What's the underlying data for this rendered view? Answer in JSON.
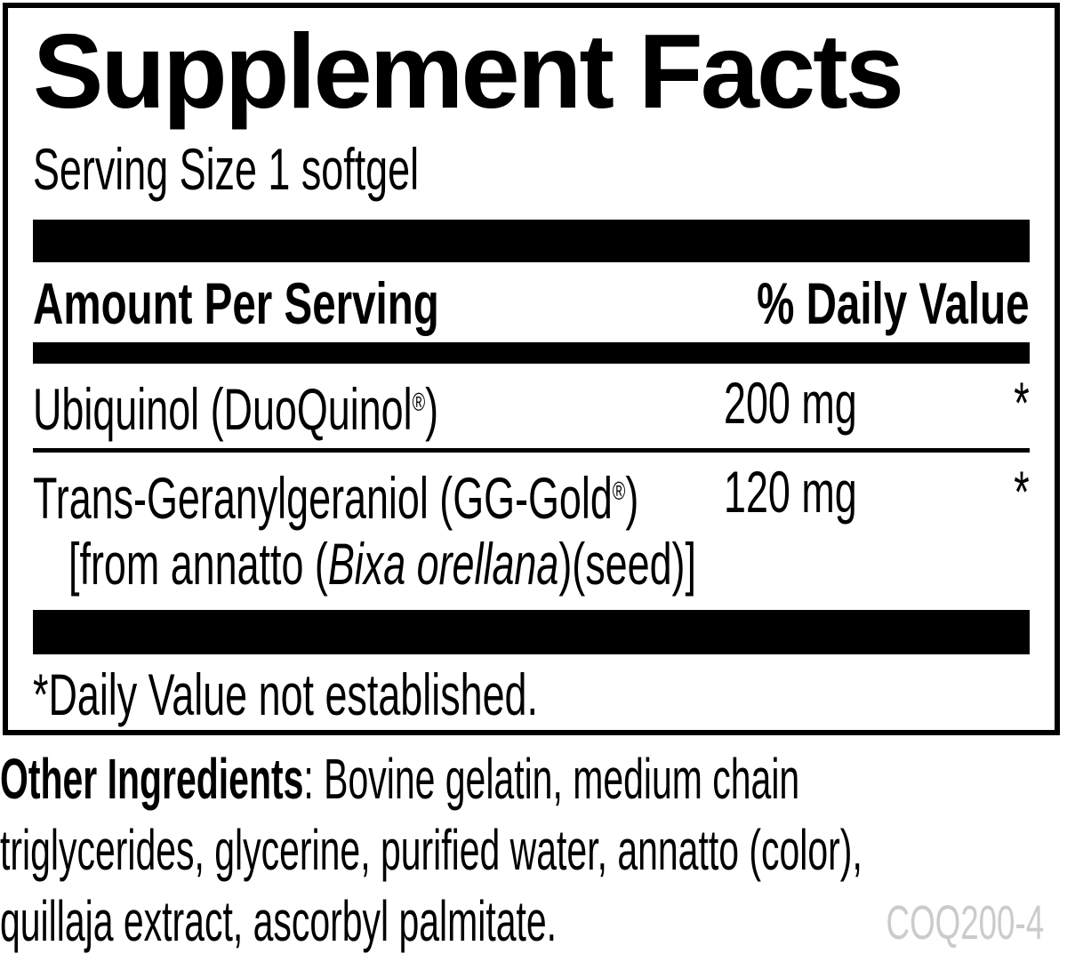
{
  "title": "Supplement Facts",
  "serving_size": "Serving Size 1 softgel",
  "header": {
    "left": "Amount Per Serving",
    "right": "% Daily Value"
  },
  "rows": [
    {
      "name": "Ubiquinol (DuoQuinol",
      "trademark": "®",
      "close_paren": ")",
      "amount": "200 mg",
      "daily_value": "*"
    },
    {
      "name": "Trans-Geranylgeraniol (GG-Gold",
      "trademark": "®",
      "close_paren": ")",
      "amount": "120 mg",
      "daily_value": "*",
      "note_prefix": "[from annatto (",
      "note_italic": "Bixa orellana",
      "note_suffix": ")(seed)]"
    }
  ],
  "footnote": "*Daily Value not established.",
  "other_ingredients": {
    "label": "Other Ingredients",
    "line1_rest": ": Bovine gelatin, medium chain",
    "line2": "triglycerides, glycerine, purified water, annatto (color),",
    "line3": "quillaja extract, ascorbyl palmitate."
  },
  "product_code": "COQ200-4",
  "colors": {
    "text": "#000000",
    "bars": "#000000",
    "background": "#ffffff",
    "product_code_gray": "#cbcbcb"
  }
}
